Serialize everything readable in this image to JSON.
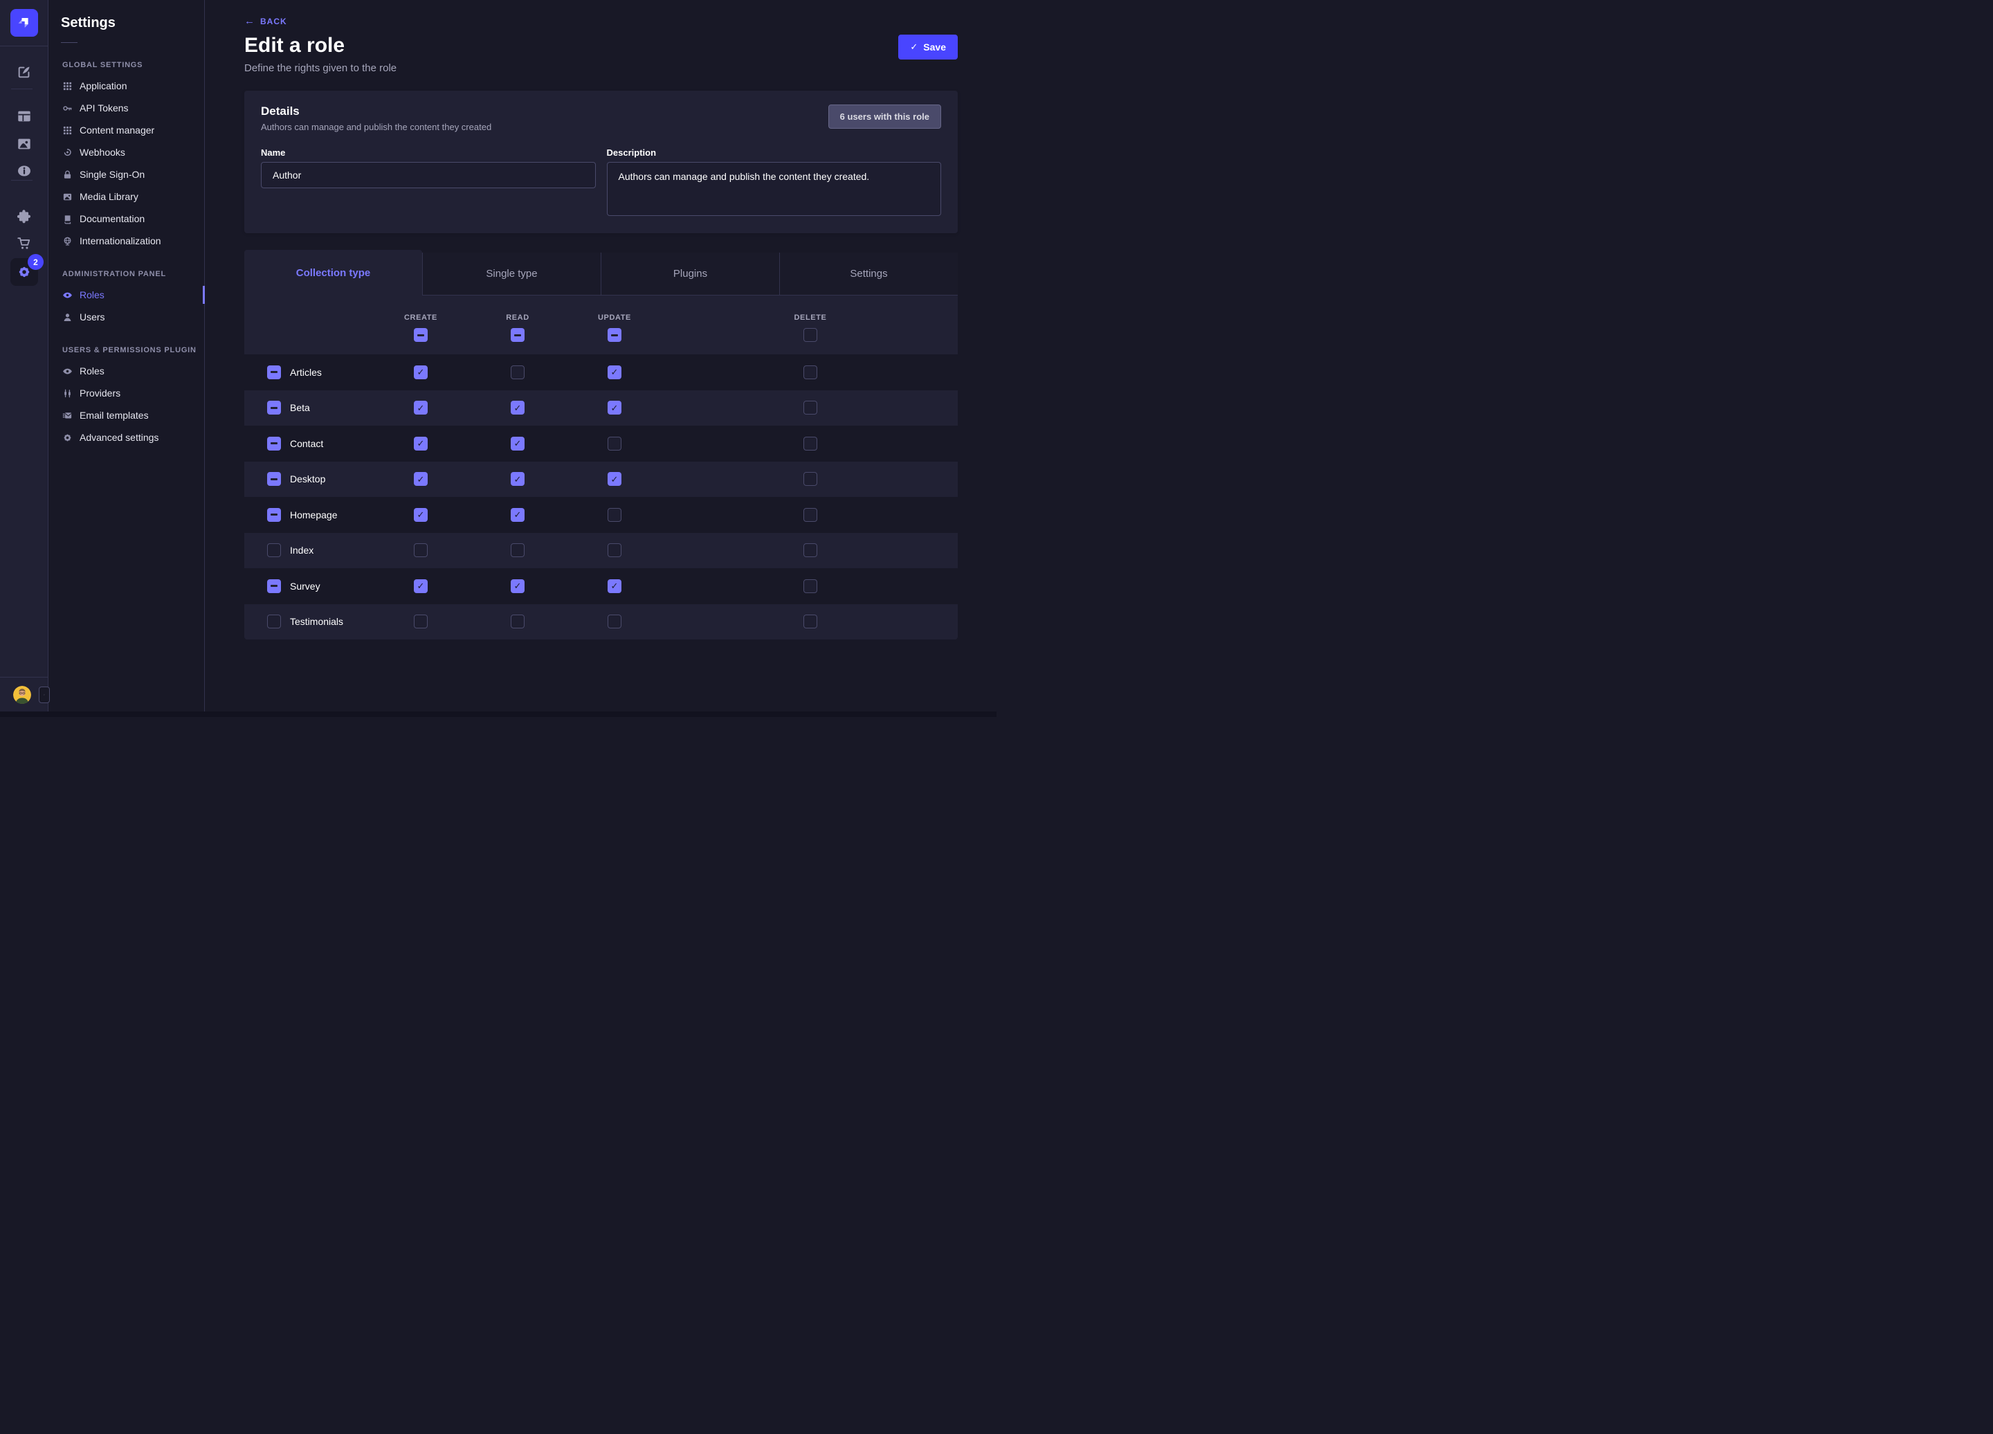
{
  "theme": {
    "page_bg": "#181826",
    "panel_bg": "#212134",
    "border": "#32324d",
    "border_light": "#4a4a6a",
    "primary": "#4945ff",
    "primary_light": "#7b79ff",
    "text_muted": "#a5a5ba",
    "text_dim": "#8e8ea9"
  },
  "nav": {
    "logo_icon": "strapi-logo",
    "groups": [
      [
        {
          "icon": "compose",
          "name": "content-manager"
        }
      ],
      [
        {
          "icon": "layout",
          "name": "content-type-builder"
        },
        {
          "icon": "media",
          "name": "media-library"
        },
        {
          "icon": "info",
          "name": "guided-tour"
        }
      ],
      [
        {
          "icon": "puzzle",
          "name": "plugins"
        },
        {
          "icon": "cart",
          "name": "marketplace"
        },
        {
          "icon": "gear",
          "name": "settings",
          "active": true,
          "badge": "2"
        }
      ]
    ],
    "settings_badge_count": "2"
  },
  "subnav": {
    "title": "Settings",
    "sections": [
      {
        "label": "GLOBAL SETTINGS",
        "items": [
          {
            "icon": "grid",
            "label": "Application"
          },
          {
            "icon": "key",
            "label": "API Tokens"
          },
          {
            "icon": "grid",
            "label": "Content manager"
          },
          {
            "icon": "webhook",
            "label": "Webhooks"
          },
          {
            "icon": "lock",
            "label": "Single Sign-On"
          },
          {
            "icon": "image",
            "label": "Media Library"
          },
          {
            "icon": "book",
            "label": "Documentation"
          },
          {
            "icon": "globe",
            "label": "Internationalization"
          }
        ]
      },
      {
        "label": "ADMINISTRATION PANEL",
        "items": [
          {
            "icon": "eye",
            "label": "Roles",
            "active": true
          },
          {
            "icon": "user",
            "label": "Users"
          }
        ]
      },
      {
        "label": "USERS & PERMISSIONS PLUGIN",
        "items": [
          {
            "icon": "eye",
            "label": "Roles"
          },
          {
            "icon": "plug",
            "label": "Providers"
          },
          {
            "icon": "mail",
            "label": "Email templates"
          },
          {
            "icon": "gear",
            "label": "Advanced settings"
          }
        ]
      }
    ]
  },
  "header": {
    "back_label": "BACK",
    "back_arrow": "←",
    "title": "Edit a role",
    "subtitle": "Define the rights given to the role",
    "save_label": "Save",
    "save_check": "✓"
  },
  "details": {
    "title": "Details",
    "subtitle": "Authors can manage and publish the content they created",
    "users_badge": "6 users with this role",
    "name_label": "Name",
    "name_value": "Author",
    "description_label": "Description",
    "description_value": "Authors can manage and publish the content they created."
  },
  "tabs": [
    {
      "label": "Collection type",
      "active": true
    },
    {
      "label": "Single type",
      "active": false
    },
    {
      "label": "Plugins",
      "active": false
    },
    {
      "label": "Settings",
      "active": false
    }
  ],
  "permissions": {
    "columns": [
      "CREATE",
      "READ",
      "UPDATE",
      "DELETE"
    ],
    "header_states": [
      "indeterminate",
      "indeterminate",
      "indeterminate",
      "unchecked"
    ],
    "rows": [
      {
        "label": "Articles",
        "row_state": "indeterminate",
        "states": [
          "checked",
          "unchecked",
          "checked",
          "unchecked"
        ]
      },
      {
        "label": "Beta",
        "row_state": "indeterminate",
        "states": [
          "checked",
          "checked",
          "checked",
          "unchecked"
        ]
      },
      {
        "label": "Contact",
        "row_state": "indeterminate",
        "states": [
          "checked",
          "checked",
          "unchecked",
          "unchecked"
        ]
      },
      {
        "label": "Desktop",
        "row_state": "indeterminate",
        "states": [
          "checked",
          "checked",
          "checked",
          "unchecked"
        ]
      },
      {
        "label": "Homepage",
        "row_state": "indeterminate",
        "states": [
          "checked",
          "checked",
          "unchecked",
          "unchecked"
        ]
      },
      {
        "label": "Index",
        "row_state": "unchecked",
        "states": [
          "unchecked",
          "unchecked",
          "unchecked",
          "unchecked"
        ]
      },
      {
        "label": "Survey",
        "row_state": "indeterminate",
        "states": [
          "checked",
          "checked",
          "checked",
          "unchecked"
        ]
      },
      {
        "label": "Testimonials",
        "row_state": "unchecked",
        "states": [
          "unchecked",
          "unchecked",
          "unchecked",
          "unchecked"
        ]
      }
    ]
  }
}
